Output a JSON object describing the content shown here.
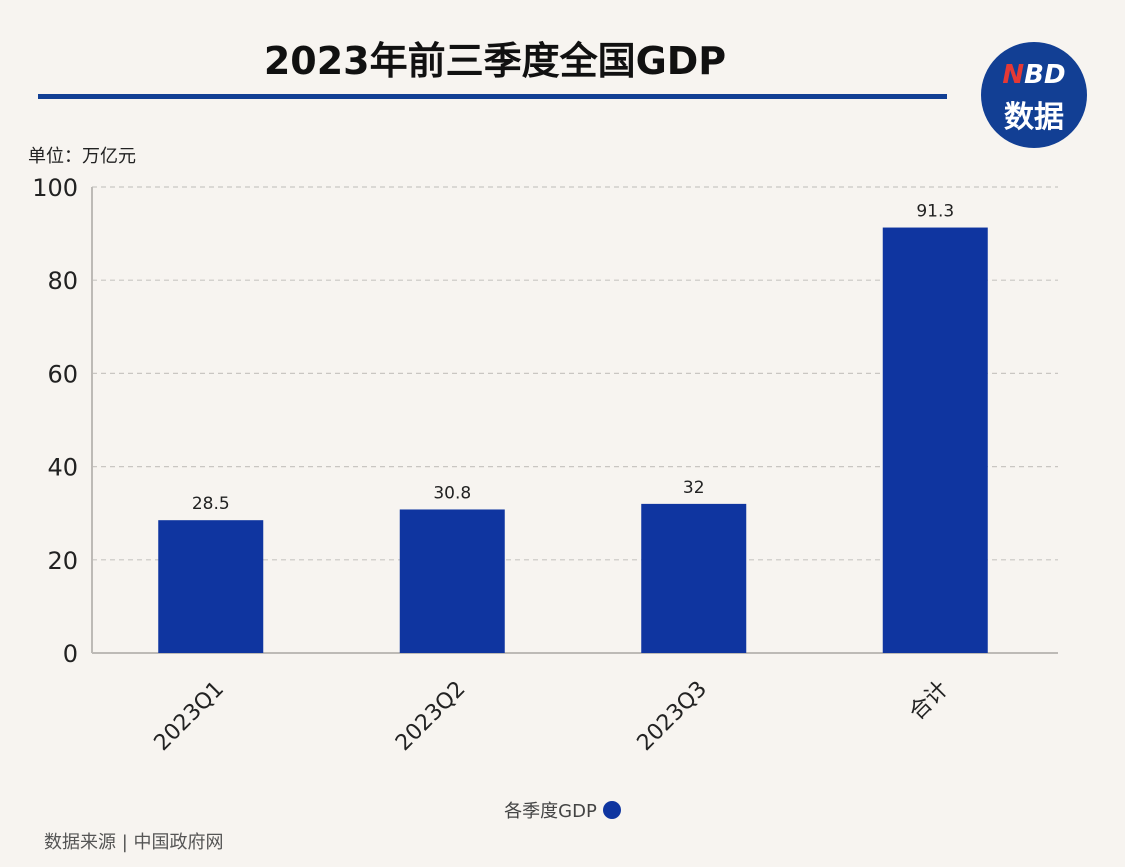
{
  "title": "2023年前三季度全国GDP",
  "logo": {
    "line1_n": "N",
    "line1_rest": "BD",
    "line2": "数据"
  },
  "unit_label": "单位：万亿元",
  "source_label": "数据来源 | 中国政府网",
  "colors": {
    "bar": "#0f35a0",
    "title_rule": "#123f94",
    "background": "#f7f4f0"
  },
  "chart_data": {
    "type": "bar",
    "title": "2023年前三季度全国GDP",
    "xlabel": "",
    "ylabel": "",
    "categories": [
      "2023Q1",
      "2023Q2",
      "2023Q3",
      "合计"
    ],
    "series": [
      {
        "name": "各季度GDP",
        "values": [
          28.5,
          30.8,
          32,
          91.3
        ],
        "labels": [
          "28.5",
          "30.8",
          "32",
          "91.3"
        ]
      }
    ],
    "ylim": [
      0,
      100
    ],
    "yticks": [
      0,
      20,
      40,
      60,
      80,
      100
    ],
    "grid": true,
    "legend_position": "bottom-center"
  }
}
